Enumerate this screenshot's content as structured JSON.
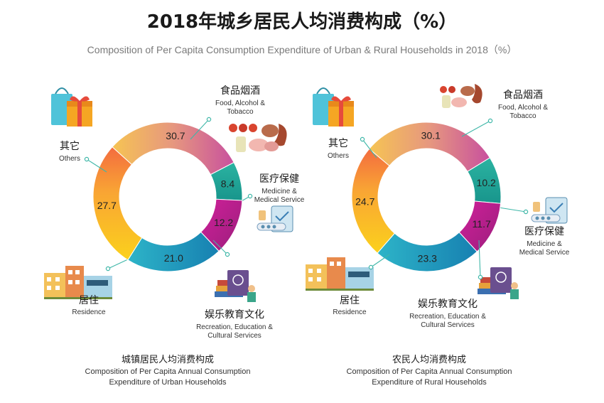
{
  "title": "2018年城乡居民人均消费构成（%）",
  "subtitle": "Composition of Per Capita Consumption Expenditure of Urban & Rural Households in 2018（%）",
  "colors": {
    "food": "#df8a84",
    "medicine": "#22a89a",
    "recreation": "#c21d8e",
    "residence": "#1f9fc0",
    "others": "#f8b52a"
  },
  "chart_data": [
    {
      "type": "pie",
      "caption_cn": "城镇居民人均消费构成",
      "caption_en_1": "Composition of Per Capita Annual Consumption",
      "caption_en_2": "Expenditure of Urban  Households",
      "slices": [
        {
          "key": "food",
          "value": 30.7,
          "label": "30.7",
          "name_cn": "食品烟酒",
          "name_en_1": "Food, Alcohol &",
          "name_en_2": "Tobacco"
        },
        {
          "key": "medicine",
          "value": 8.4,
          "label": "8.4",
          "name_cn": "医疗保健",
          "name_en_1": "Medicine  &",
          "name_en_2": "Medical Service"
        },
        {
          "key": "recreation",
          "value": 12.2,
          "label": "12.2",
          "name_cn": "娱乐教育文化",
          "name_en_1": "Recreation, Education &",
          "name_en_2": "Cultural Services"
        },
        {
          "key": "residence",
          "value": 21.0,
          "label": "21.0",
          "name_cn": "居住",
          "name_en_1": "Residence",
          "name_en_2": ""
        },
        {
          "key": "others",
          "value": 27.7,
          "label": "27.7",
          "name_cn": "其它",
          "name_en_1": "Others",
          "name_en_2": ""
        }
      ]
    },
    {
      "type": "pie",
      "caption_cn": "农民人均消费构成",
      "caption_en_1": "Composition of Per Capita Annual Consumption",
      "caption_en_2": "Expenditure of Rural  Households",
      "slices": [
        {
          "key": "food",
          "value": 30.1,
          "label": "30.1",
          "name_cn": "食品烟酒",
          "name_en_1": "Food, Alcohol &",
          "name_en_2": "Tobacco"
        },
        {
          "key": "medicine",
          "value": 10.2,
          "label": "10.2",
          "name_cn": "医疗保健",
          "name_en_1": "Medicine  &",
          "name_en_2": "Medical Service"
        },
        {
          "key": "recreation",
          "value": 11.7,
          "label": "11.7",
          "name_cn": "娱乐教育文化",
          "name_en_1": "Recreation, Education &",
          "name_en_2": "Cultural Services"
        },
        {
          "key": "residence",
          "value": 23.3,
          "label": "23.3",
          "name_cn": "居住",
          "name_en_1": "Residence",
          "name_en_2": ""
        },
        {
          "key": "others",
          "value": 24.7,
          "label": "24.7",
          "name_cn": "其它",
          "name_en_1": "Others",
          "name_en_2": ""
        }
      ]
    }
  ]
}
